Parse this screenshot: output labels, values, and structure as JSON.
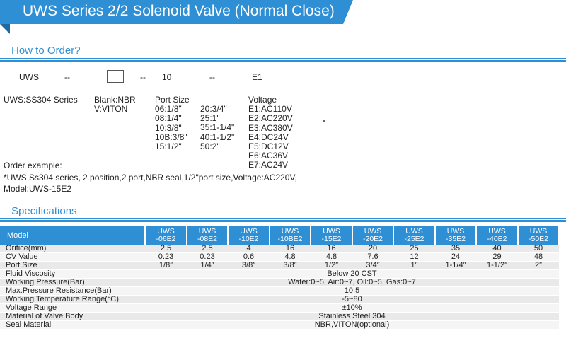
{
  "title": "UWS Series 2/2 Solenoid Valve (Normal Close)",
  "how_to_order": {
    "heading": "How to Order?",
    "code_row": {
      "series": "UWS",
      "sep1": "--",
      "sep2": "--",
      "port": "10",
      "sep3": "--",
      "voltage": "E1"
    },
    "series_desc": "UWS:SS304 Series",
    "seal_lines": [
      "Blank:NBR",
      "V:VITON"
    ],
    "port_size_label": "Port Size",
    "port_sizes_left": [
      "06:1/8\"",
      "08:1/4\"",
      "10:3/8\"",
      "10B:3/8\"",
      "15:1/2\""
    ],
    "port_sizes_right": [
      "20:3/4\"",
      "25:1\"",
      "35:1-1/4\"",
      "40:1-1/2\"",
      "50:2\""
    ],
    "voltage_label": "Voltage",
    "voltages": [
      "E1:AC110V",
      "E2:AC220V",
      "E3:AC380V",
      "E4:DC24V",
      "E5:DC12V",
      "E6:AC36V",
      "E7:AC24V"
    ],
    "example_label": "Order example:",
    "example_line1": "*UWS Ss304 series, 2 position,2 port,NBR seal,1/2\"port size,Voltage:AC220V,",
    "example_line2": "Model:UWS-15E2"
  },
  "specifications": {
    "heading": "Specifications",
    "model_label": "Model",
    "models": [
      {
        "top": "UWS",
        "bottom": "-06E2"
      },
      {
        "top": "UWS",
        "bottom": "-08E2"
      },
      {
        "top": "UWS",
        "bottom": "-10E2"
      },
      {
        "top": "UWS",
        "bottom": "-10BE2"
      },
      {
        "top": "UWS",
        "bottom": "-15E2"
      },
      {
        "top": "UWS",
        "bottom": "-20E2"
      },
      {
        "top": "UWS",
        "bottom": "-25E2"
      },
      {
        "top": "UWS",
        "bottom": "-35E2"
      },
      {
        "top": "UWS",
        "bottom": "-40E2"
      },
      {
        "top": "UWS",
        "bottom": "-50E2"
      }
    ],
    "rows": [
      {
        "label": "Orifice(mm)",
        "values": [
          "2.5",
          "2.5",
          "4",
          "16",
          "16",
          "20",
          "25",
          "35",
          "40",
          "50"
        ]
      },
      {
        "label": "CV Value",
        "values": [
          "0.23",
          "0.23",
          "0.6",
          "4.8",
          "4.8",
          "7.6",
          "12",
          "24",
          "29",
          "48"
        ]
      },
      {
        "label": "Port Size",
        "values": [
          "1/8″",
          "1/4″",
          "3/8″",
          "3/8″",
          "1/2″",
          "3/4″",
          "1″",
          "1-1/4″",
          "1-1/2″",
          "2″"
        ]
      },
      {
        "label": "Fluid Viscosity",
        "span": "Below 20 CST"
      },
      {
        "label": "Working Pressure(Bar)",
        "span": "Water:0~5, Air:0~7, Oil:0~5, Gas:0~7"
      },
      {
        "label": "Max.Pressure Resistance(Bar)",
        "span": "10.5"
      },
      {
        "label": "Working Temperature Range(°C)",
        "span": "-5~80"
      },
      {
        "label": "Voltage Range",
        "span": "±10%"
      },
      {
        "label": "Material of Valve Body",
        "span": "Stainless Steel 304"
      },
      {
        "label": "Seal Material",
        "span": "NBR,VITON(optional)"
      }
    ]
  },
  "colors": {
    "accent": "#2f8fd5",
    "row_light": "#f5f5f5",
    "row_dark": "#e9e9e9"
  }
}
